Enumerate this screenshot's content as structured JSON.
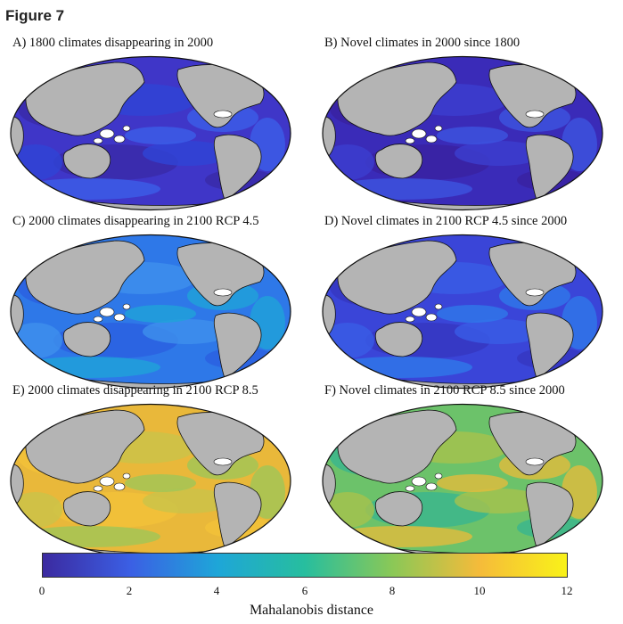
{
  "figure_title": "Figure 7",
  "panels": [
    {
      "title": "A) 1800 climates disappearing in 2000",
      "palette": [
        "#3a2aa8",
        "#3f36c8",
        "#2f45d6",
        "#3c5fe8"
      ]
    },
    {
      "title": "B) Novel climates in 2000 since 1800",
      "palette": [
        "#3a22a0",
        "#3a2bb8",
        "#3c3fd0",
        "#3d55e0"
      ]
    },
    {
      "title": "C) 2000 climates disappearing in 2100 RCP 4.5",
      "palette": [
        "#2a5fe0",
        "#2e78e8",
        "#3f90ec",
        "#1fa2d8"
      ]
    },
    {
      "title": "D) Novel climates in 2100 RCP 4.5 since 2000",
      "palette": [
        "#3636c0",
        "#3a45d8",
        "#3a5ce6",
        "#2f78ea"
      ]
    },
    {
      "title": "E) 2000 climates disappearing in 2100 RCP 8.5",
      "palette": [
        "#f2c23a",
        "#e9b83a",
        "#c9c34a",
        "#9fc558"
      ]
    },
    {
      "title": "F) Novel climates in 2100 RCP 8.5 since 2000",
      "palette": [
        "#3ab58e",
        "#6cc26a",
        "#a8c24c",
        "#e3bc3c"
      ]
    }
  ],
  "colorbar": {
    "label": "Mahalanobis distance",
    "ticks": [
      "0",
      "2",
      "4",
      "6",
      "8",
      "10",
      "12"
    ],
    "min": 0,
    "max": 12,
    "colors": [
      "#3b2aa0",
      "#3b5fe4",
      "#1ea6d8",
      "#27be9e",
      "#8ac857",
      "#f5bb3a",
      "#f9f219"
    ]
  },
  "colors": {
    "land": "#b4b4b4",
    "ocean_border": "#111111"
  }
}
